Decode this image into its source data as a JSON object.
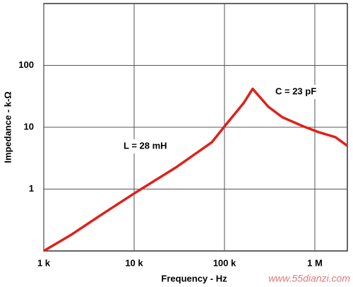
{
  "chart_data": {
    "type": "line",
    "x_label": "Frequency - Hz",
    "y_label": "Impedance - k-Ω",
    "log_x": true,
    "log_y": true,
    "grid": true,
    "minor_grid": true,
    "xlim": [
      1000,
      2290000
    ],
    "ylim": [
      0.1,
      1000
    ],
    "xticks": [
      {
        "value": 1000,
        "label": "1 k"
      },
      {
        "value": 10000,
        "label": "10 k"
      },
      {
        "value": 100000,
        "label": "100 k"
      },
      {
        "value": 1000000,
        "label": "1 M"
      }
    ],
    "yticks": [
      1,
      10,
      100
    ],
    "series": [
      {
        "color": "#e0201b",
        "x": [
          1000,
          1980,
          4870,
          10000,
          29400,
          72300,
          100000,
          163000,
          205000,
          305000,
          437000,
          750000,
          1110000,
          1690000,
          2290000
        ],
        "values": [
          0.1,
          0.18,
          0.43,
          0.85,
          2.27,
          5.7,
          10.3,
          24.6,
          41.8,
          21.5,
          14.5,
          10.3,
          8.3,
          6.9,
          5.0
        ]
      }
    ],
    "annotations": [
      "L = 28 mH",
      "C = 23 pF"
    ],
    "watermark": "www.55dianzi.com"
  }
}
